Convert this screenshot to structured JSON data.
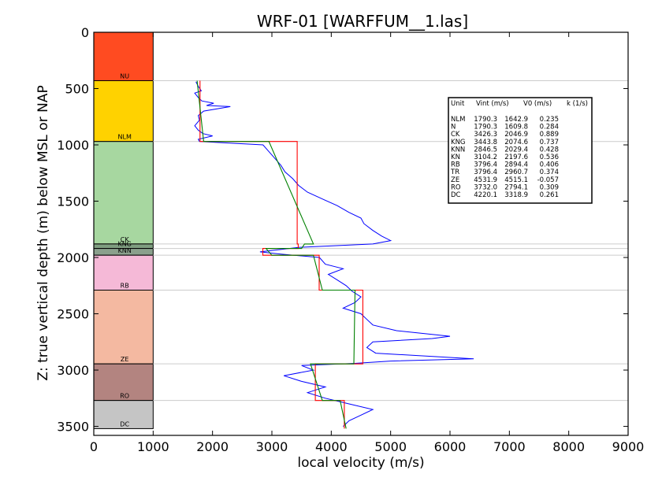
{
  "chart_data": {
    "type": "line",
    "title": "WRF-01 [WARFFUM__1.las]",
    "xlabel": "local velocity (m/s)",
    "ylabel": "Z: true vertical depth (m) below MSL or NAP",
    "xlim": [
      0,
      9000
    ],
    "ylim": [
      3580,
      0
    ],
    "y_inverted": true,
    "xticks": [
      "0",
      "1000",
      "2000",
      "3000",
      "4000",
      "5000",
      "6000",
      "7000",
      "8000",
      "9000"
    ],
    "yticks": [
      "0",
      "500",
      "1000",
      "1500",
      "2000",
      "2500",
      "3000",
      "3500"
    ],
    "units": [
      {
        "name": "NU",
        "top": 0,
        "base": 430,
        "color": "#ff4b21"
      },
      {
        "name": "NLM",
        "top": 430,
        "base": 970,
        "color": "#ffd200"
      },
      {
        "name": "CK",
        "top": 970,
        "base": 1880,
        "color": "#a7d7a0"
      },
      {
        "name": "KNG",
        "top": 1880,
        "base": 1920,
        "color": "#7f9d80"
      },
      {
        "name": "KNN",
        "top": 1920,
        "base": 1980,
        "color": "#8aa08c"
      },
      {
        "name": "RB",
        "top": 1980,
        "base": 2290,
        "color": "#f5b9d7"
      },
      {
        "name": "ZE",
        "top": 2290,
        "base": 2945,
        "color": "#f4b9a1"
      },
      {
        "name": "RO",
        "top": 2945,
        "base": 3270,
        "color": "#b38480"
      },
      {
        "name": "DC",
        "top": 3270,
        "base": 3520,
        "color": "#c5c5c5"
      }
    ],
    "unit_label_color": "#000000",
    "series": [
      {
        "color": "#0000ff",
        "points": [
          [
            1720,
            440
          ],
          [
            1760,
            480
          ],
          [
            1810,
            520
          ],
          [
            1700,
            540
          ],
          [
            1760,
            580
          ],
          [
            1820,
            610
          ],
          [
            2020,
            630
          ],
          [
            1900,
            650
          ],
          [
            2300,
            660
          ],
          [
            1850,
            700
          ],
          [
            1760,
            740
          ],
          [
            1780,
            780
          ],
          [
            1700,
            830
          ],
          [
            1760,
            870
          ],
          [
            1840,
            900
          ],
          [
            2000,
            920
          ],
          [
            1760,
            950
          ],
          [
            1780,
            970
          ],
          [
            2850,
            1000
          ],
          [
            2950,
            1060
          ],
          [
            3050,
            1120
          ],
          [
            3150,
            1180
          ],
          [
            3220,
            1240
          ],
          [
            3350,
            1300
          ],
          [
            3450,
            1360
          ],
          [
            3600,
            1420
          ],
          [
            3850,
            1480
          ],
          [
            4100,
            1540
          ],
          [
            4300,
            1600
          ],
          [
            4500,
            1650
          ],
          [
            4550,
            1700
          ],
          [
            4700,
            1760
          ],
          [
            4850,
            1810
          ],
          [
            5000,
            1850
          ],
          [
            4700,
            1880
          ],
          [
            3450,
            1910
          ],
          [
            2800,
            1950
          ],
          [
            3150,
            1970
          ],
          [
            3800,
            2000
          ],
          [
            3900,
            2060
          ],
          [
            4200,
            2100
          ],
          [
            3950,
            2150
          ],
          [
            4100,
            2200
          ],
          [
            4250,
            2250
          ],
          [
            4350,
            2300
          ],
          [
            4500,
            2350
          ],
          [
            4400,
            2400
          ],
          [
            4200,
            2450
          ],
          [
            4500,
            2500
          ],
          [
            4600,
            2550
          ],
          [
            4700,
            2600
          ],
          [
            5100,
            2650
          ],
          [
            6000,
            2700
          ],
          [
            5700,
            2720
          ],
          [
            4700,
            2750
          ],
          [
            4600,
            2800
          ],
          [
            4750,
            2850
          ],
          [
            6400,
            2900
          ],
          [
            5000,
            2920
          ],
          [
            4400,
            2940
          ],
          [
            3500,
            2960
          ],
          [
            3700,
            3000
          ],
          [
            3200,
            3050
          ],
          [
            3500,
            3100
          ],
          [
            3900,
            3150
          ],
          [
            3600,
            3200
          ],
          [
            3900,
            3250
          ],
          [
            4300,
            3300
          ],
          [
            4700,
            3350
          ],
          [
            4500,
            3400
          ],
          [
            4300,
            3450
          ],
          [
            4200,
            3500
          ]
        ]
      },
      {
        "color": "#ff0000",
        "points": [
          [
            1790,
            430
          ],
          [
            1790,
            970
          ],
          [
            3426,
            970
          ],
          [
            3426,
            1880
          ],
          [
            3444,
            1880
          ],
          [
            3444,
            1920
          ],
          [
            2847,
            1920
          ],
          [
            2847,
            1980
          ],
          [
            3796,
            1980
          ],
          [
            3796,
            2290
          ],
          [
            4532,
            2290
          ],
          [
            4532,
            2945
          ],
          [
            3732,
            2945
          ],
          [
            3732,
            3270
          ],
          [
            4220,
            3270
          ],
          [
            4220,
            3520
          ]
        ]
      },
      {
        "color": "#008000",
        "points": [
          [
            1740,
            430
          ],
          [
            1850,
            970
          ],
          [
            2950,
            970
          ],
          [
            3700,
            1880
          ],
          [
            3550,
            1880
          ],
          [
            3500,
            1920
          ],
          [
            2900,
            1920
          ],
          [
            3000,
            1980
          ],
          [
            3700,
            1980
          ],
          [
            3850,
            2290
          ],
          [
            4400,
            2290
          ],
          [
            4380,
            2945
          ],
          [
            3650,
            2945
          ],
          [
            3850,
            3270
          ],
          [
            4150,
            3270
          ],
          [
            4250,
            3520
          ]
        ]
      }
    ],
    "legend": {
      "placement": "upper-right",
      "header": [
        "Unit",
        "Vint (m/s)",
        "V0 (m/s)",
        "k (1/s)"
      ],
      "rows": [
        [
          "NLM",
          "1790.3",
          "1642.9",
          "0.235"
        ],
        [
          "N",
          "1790.3",
          "1609.8",
          "0.284"
        ],
        [
          "CK",
          "3426.3",
          "2046.9",
          "0.889"
        ],
        [
          "KNG",
          "3443.8",
          "2074.6",
          "0.737"
        ],
        [
          "KNN",
          "2846.5",
          "2029.4",
          "0.428"
        ],
        [
          "KN",
          "3104.2",
          "2197.6",
          "0.536"
        ],
        [
          "RB",
          "3796.4",
          "2894.4",
          "0.406"
        ],
        [
          "TR",
          "3796.4",
          "2960.7",
          "0.374"
        ],
        [
          "ZE",
          "4531.9",
          "4515.1",
          "-0.057"
        ],
        [
          "RO",
          "3732.0",
          "2794.1",
          "0.309"
        ],
        [
          "DC",
          "4220.1",
          "3318.9",
          "0.261"
        ]
      ]
    },
    "grid": "horizontal lines at unit boundaries"
  }
}
